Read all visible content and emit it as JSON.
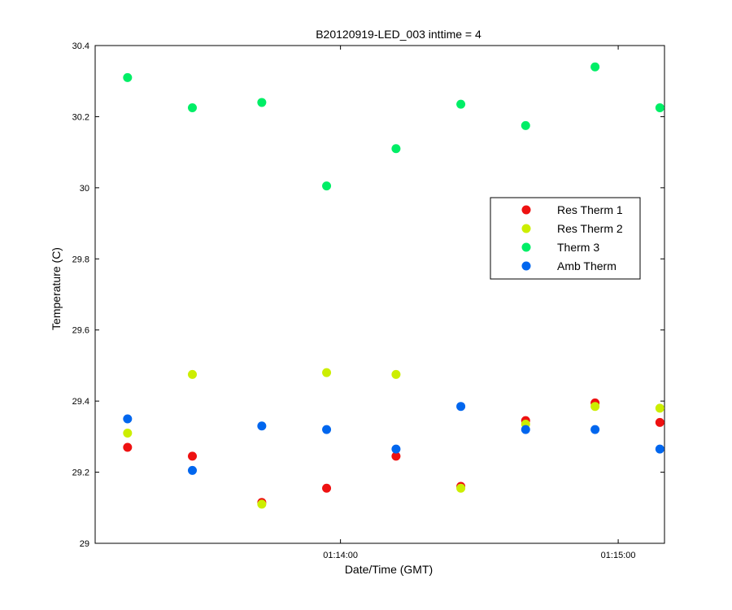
{
  "chart_data": {
    "type": "scatter",
    "title": "B20120919-LED_003 inttime = 4",
    "xlabel": "Date/Time (GMT)",
    "ylabel": "Temperature (C)",
    "xlim": [
      "01:13:07",
      "01:15:10"
    ],
    "ylim": [
      29,
      30.4
    ],
    "x_ticks": [
      "01:14:00",
      "01:15:00"
    ],
    "y_ticks": [
      "29",
      "29.2",
      "29.4",
      "29.6",
      "29.8",
      "30",
      "30.2",
      "30.4"
    ],
    "grid": false,
    "legend_position": "upper-right",
    "x": [
      "01:13:14",
      "01:13:28",
      "01:13:43",
      "01:13:57",
      "01:14:12",
      "01:14:26",
      "01:14:40",
      "01:14:55",
      "01:15:09"
    ],
    "series": [
      {
        "name": "Res Therm 1",
        "color": "#ee1111",
        "values": [
          29.27,
          29.245,
          29.115,
          29.155,
          29.245,
          29.16,
          29.345,
          29.395,
          29.34
        ]
      },
      {
        "name": "Res Therm 2",
        "color": "#ccee00",
        "values": [
          29.31,
          29.475,
          29.11,
          29.48,
          29.475,
          29.155,
          29.335,
          29.385,
          29.38
        ]
      },
      {
        "name": "Therm 3",
        "color": "#00ee66",
        "values": [
          30.31,
          30.225,
          30.24,
          30.005,
          30.11,
          30.235,
          30.175,
          30.34,
          30.225
        ]
      },
      {
        "name": "Amb Therm",
        "color": "#0066ee",
        "values": [
          29.35,
          29.205,
          29.33,
          29.32,
          29.265,
          29.385,
          29.32,
          29.32,
          29.265
        ]
      }
    ]
  }
}
